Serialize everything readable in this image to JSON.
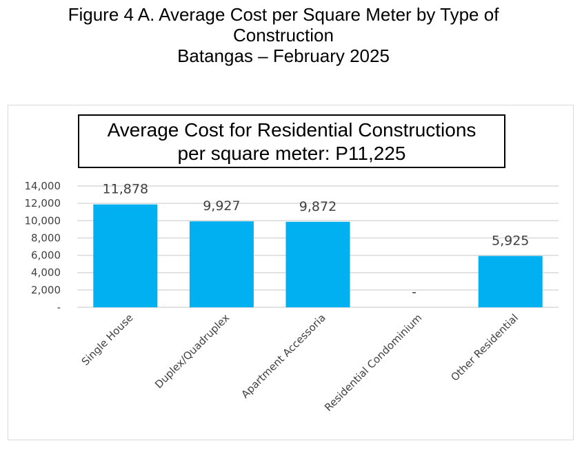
{
  "figure": {
    "title_line1": "Figure 4 A. Average Cost per Square Meter by Type of",
    "title_line2": "Construction",
    "title_line3": "Batangas – February 2025"
  },
  "callout": {
    "line1": "Average Cost for Residential Constructions",
    "line2": "per square meter: P11,225"
  },
  "colors": {
    "bar": "#00b0f0",
    "grid": "#d9d9d9",
    "text": "#404040"
  },
  "chart_data": {
    "type": "bar",
    "title": "",
    "xlabel": "",
    "ylabel": "",
    "categories": [
      "Single House",
      "Duplex/Quadruplex",
      "Apartment Accessoria",
      "Residential Condominium",
      "Other Residential"
    ],
    "values": [
      11878,
      9927,
      9872,
      null,
      5925
    ],
    "data_labels": [
      "11,878",
      "9,927",
      "9,872",
      "-",
      "5,925"
    ],
    "y_ticks": [
      0,
      2000,
      4000,
      6000,
      8000,
      10000,
      12000,
      14000
    ],
    "y_tick_labels": [
      "-",
      "2,000",
      "4,000",
      "6,000",
      "8,000",
      "10,000",
      "12,000",
      "14,000"
    ],
    "ylim": [
      0,
      14000
    ],
    "grid": true,
    "legend": "none"
  }
}
